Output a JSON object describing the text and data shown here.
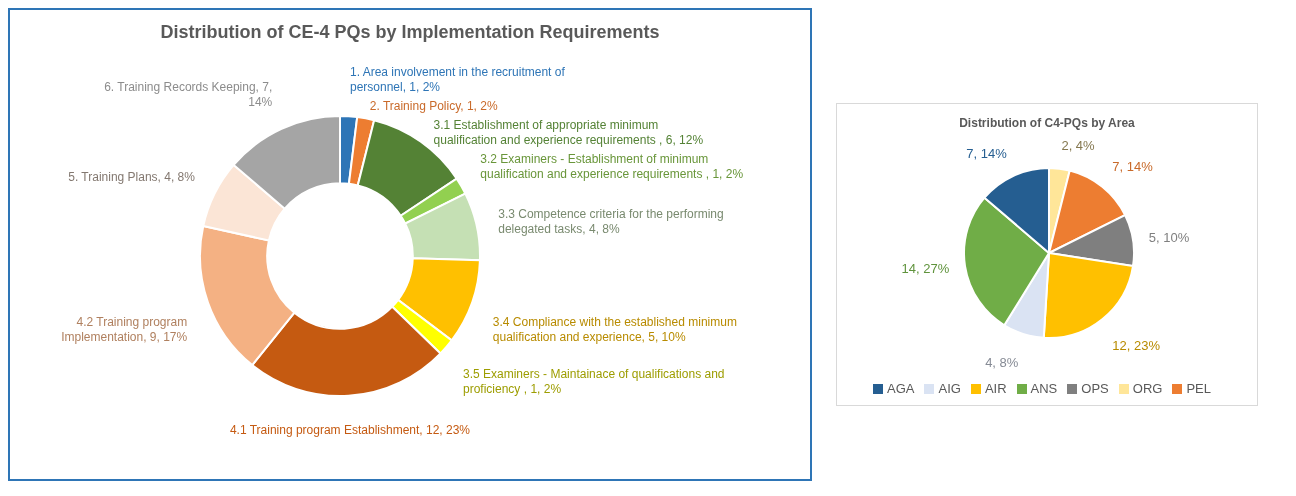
{
  "chart_data": [
    {
      "type": "donut",
      "title": "Distribution of CE-4 PQs by Implementation Requirements",
      "categories": [
        "1. Area involvement in the recruitment of personnel",
        "2. Training Policy",
        "3.1 Establishment of appropriate minimum qualification and experience requirements ",
        "3.2 Examiners - Establishment of minimum qualification and experience  requirements ",
        "3.3 Competence criteria for the performing delegated tasks",
        "3.4 Compliance with the established minimum qualification and experience",
        "3.5 Examiners - Maintainace of qualifications and proficiency ",
        "4.1 Training program Establishment",
        "4.2 Training program Implementation",
        "5. Training Plans",
        "6. Training Records Keeping"
      ],
      "values": [
        1,
        1,
        6,
        1,
        4,
        5,
        1,
        12,
        9,
        4,
        7
      ],
      "value_labels": [
        "1, 2%",
        "1, 2%",
        "6, 12%",
        "1, 2%",
        "4, 8%",
        "5, 10%",
        "1, 2%",
        "12, 23%",
        "9, 17%",
        "4, 8%",
        "7, 14%"
      ],
      "colors": [
        "#2e75b6",
        "#ed7d31",
        "#548235",
        "#92d050",
        "#c5e0b4",
        "#ffc000",
        "#ffff00",
        "#c55a11",
        "#f4b183",
        "#fbe5d6",
        "#a5a5a5"
      ],
      "legend": false
    },
    {
      "type": "pie",
      "title": "Distribution of C4-PQs by Area",
      "categories": [
        "ORG",
        "PEL",
        "OPS",
        "AIR",
        "AIG",
        "ANS",
        "AGA"
      ],
      "values": [
        2,
        7,
        5,
        12,
        4,
        14,
        7
      ],
      "value_labels": [
        "2, 4%",
        "7, 14%",
        "5, 10%",
        "12, 23%",
        "4, 8%",
        "14, 27%",
        "7, 14%"
      ],
      "colors": [
        "#ffe699",
        "#ed7d31",
        "#7f7f7f",
        "#ffc000",
        "#dae3f3",
        "#70ad47",
        "#255e91"
      ],
      "legend": "bottom"
    }
  ]
}
